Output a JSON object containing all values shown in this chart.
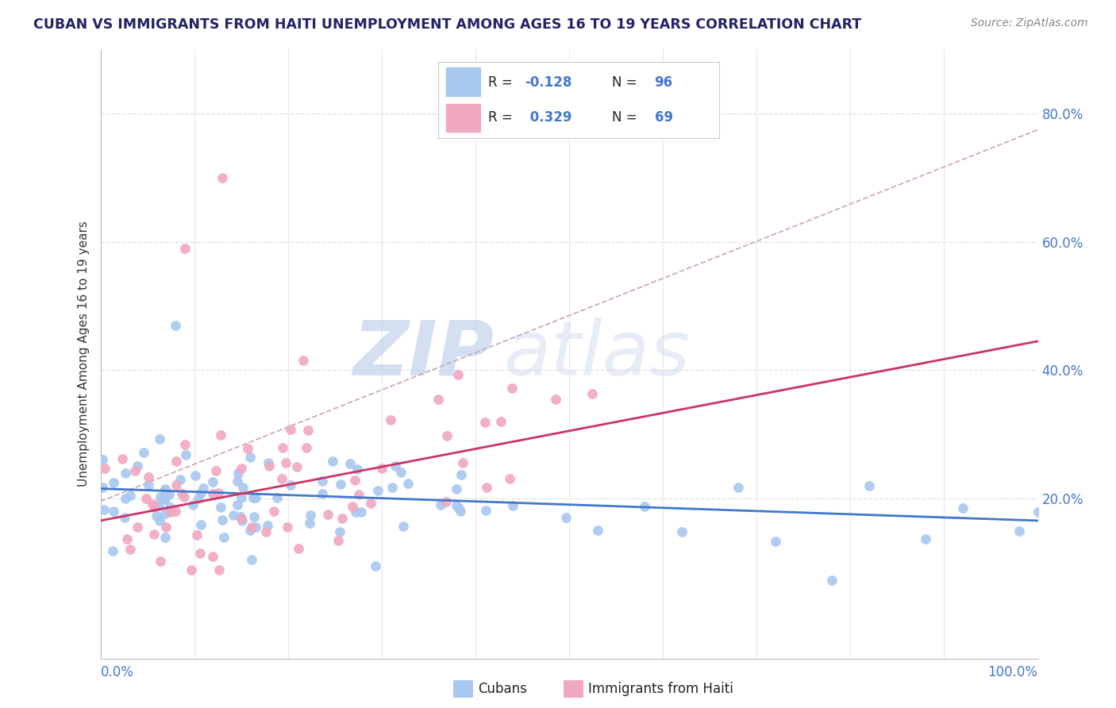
{
  "title": "CUBAN VS IMMIGRANTS FROM HAITI UNEMPLOYMENT AMONG AGES 16 TO 19 YEARS CORRELATION CHART",
  "source_text": "Source: ZipAtlas.com",
  "ylabel": "Unemployment Among Ages 16 to 19 years",
  "xlim": [
    0.0,
    1.0
  ],
  "ylim": [
    -0.05,
    0.9
  ],
  "ytick_labels_right": [
    "20.0%",
    "40.0%",
    "60.0%",
    "80.0%"
  ],
  "ytick_positions_right": [
    0.2,
    0.4,
    0.6,
    0.8
  ],
  "cubans_color": "#a8c8f0",
  "haiti_color": "#f0a8c0",
  "trendline_cubans_color": "#4477cc",
  "trendline_haiti_color": "#cc3366",
  "trendline_dashed_color": "#ccaabb",
  "legend_R_cubans": "-0.128",
  "legend_N_cubans": "96",
  "legend_R_haiti": "0.329",
  "legend_N_haiti": "69",
  "watermark_zip": "ZIP",
  "watermark_atlas": "atlas",
  "watermark_color": "#c8d8f0",
  "background_color": "#ffffff",
  "grid_color": "#e0e0e0",
  "title_color": "#222266",
  "label_color": "#4477cc",
  "legend_text_color": "#222222",
  "source_color": "#888888",
  "trendline_cubans_slope": -0.05,
  "trendline_cubans_intercept": 0.215,
  "trendline_haiti_slope": 0.28,
  "trendline_haiti_intercept": 0.165,
  "trendline_dashed_slope": 0.58,
  "trendline_dashed_intercept": 0.195
}
